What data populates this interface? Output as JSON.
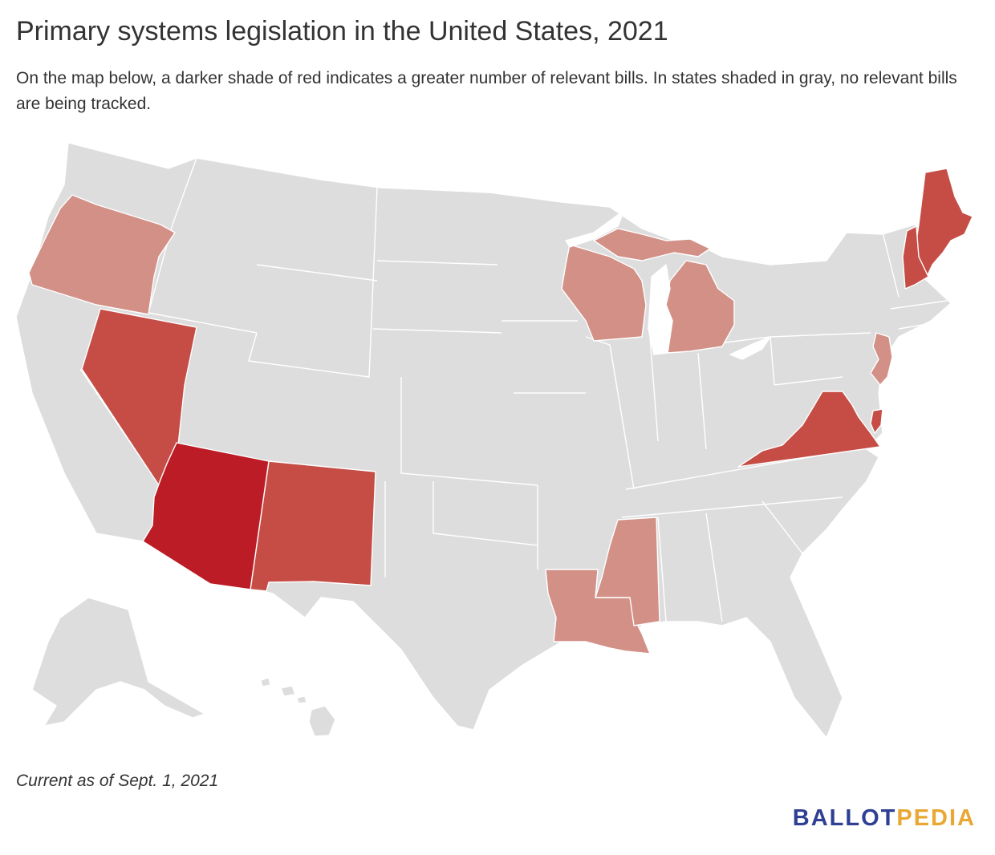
{
  "title": "Primary systems legislation in the United States, 2021",
  "subtitle": "On the map below, a darker shade of red indicates a greater number of relevant bills. In states shaded in gray, no relevant bills are being tracked.",
  "note": "Current as of Sept. 1, 2021",
  "logo": {
    "part1": "BALLOT",
    "part2": "PEDIA"
  },
  "colors": {
    "none": "#dddddd",
    "light": "#d29087",
    "medium": "#c54d45",
    "dark": "#bc1c25",
    "logo_blue": "#2f3f94",
    "logo_orange": "#e9a733"
  },
  "states_shaded": {
    "light": [
      "Oregon",
      "Wisconsin",
      "Michigan",
      "New Jersey",
      "Louisiana",
      "Mississippi"
    ],
    "medium": [
      "Nevada",
      "New Mexico",
      "Maine",
      "New Hampshire",
      "Virginia",
      "Delaware"
    ],
    "dark": [
      "Arizona"
    ]
  }
}
